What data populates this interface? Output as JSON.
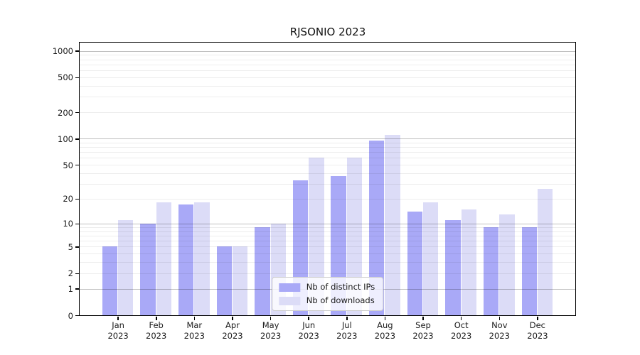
{
  "chart_data": {
    "type": "bar",
    "title": "RJSONIO 2023",
    "categories": [
      "Jan 2023",
      "Feb 2023",
      "Mar 2023",
      "Apr 2023",
      "May 2023",
      "Jun 2023",
      "Jul 2023",
      "Aug 2023",
      "Sep 2023",
      "Oct 2023",
      "Nov 2023",
      "Dec 2023"
    ],
    "series": [
      {
        "name": "Nb of distinct IPs",
        "color": "#a9a9f7",
        "values": [
          5,
          10,
          17,
          5,
          9,
          33,
          37,
          95,
          14,
          11,
          9,
          9
        ]
      },
      {
        "name": "Nb of downloads",
        "color": "#dcdcf7",
        "values": [
          11,
          18,
          18,
          5,
          10,
          60,
          60,
          110,
          18,
          15,
          13,
          26
        ]
      }
    ],
    "yscale": "log1p",
    "ylim": [
      0,
      1240
    ],
    "y_ticks": [
      1000,
      500,
      200,
      100,
      50,
      20,
      10,
      5,
      2,
      1,
      0
    ],
    "y_major_gridlines": [
      1,
      10,
      100,
      1000
    ],
    "xlabel": "",
    "ylabel": "",
    "grid": true,
    "legend_position": "lower center"
  }
}
